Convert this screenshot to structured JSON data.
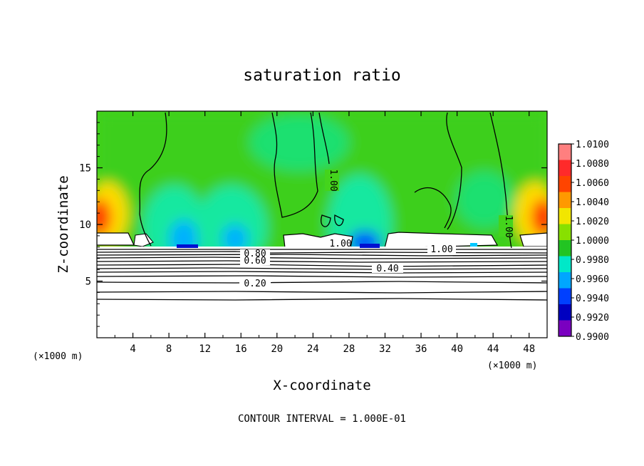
{
  "chart_data": {
    "type": "heatmap",
    "title": "saturation ratio",
    "xlabel": "X-coordinate",
    "ylabel": "Z-coordinate",
    "x_unit": "(×1000 m)",
    "x_unit_right": "(×1000 m)",
    "xlim": [
      0,
      50
    ],
    "ylim": [
      0,
      20
    ],
    "x_ticks": [
      4,
      8,
      12,
      16,
      20,
      24,
      28,
      32,
      36,
      40,
      44,
      48
    ],
    "y_ticks": [
      5,
      10,
      15
    ],
    "contour_interval_text": "CONTOUR INTERVAL = 1.000E-01",
    "contour_labels": [
      "1.00",
      "1.00",
      "1.00",
      "1.00",
      "0.80",
      "0.60",
      "0.40",
      "0.20"
    ],
    "colorbar": {
      "values": [
        "1.0100",
        "1.0080",
        "1.0060",
        "1.0040",
        "1.0020",
        "1.0000",
        "0.9980",
        "0.9960",
        "0.9940",
        "0.9920",
        "0.9900"
      ],
      "colors": [
        "#ff7f7f",
        "#ff2a2a",
        "#ff4400",
        "#ff9900",
        "#f2e600",
        "#88e000",
        "#22c422",
        "#00e8c8",
        "#00a6ff",
        "#0040ff",
        "#0000c0",
        "#7a00c0"
      ]
    }
  }
}
